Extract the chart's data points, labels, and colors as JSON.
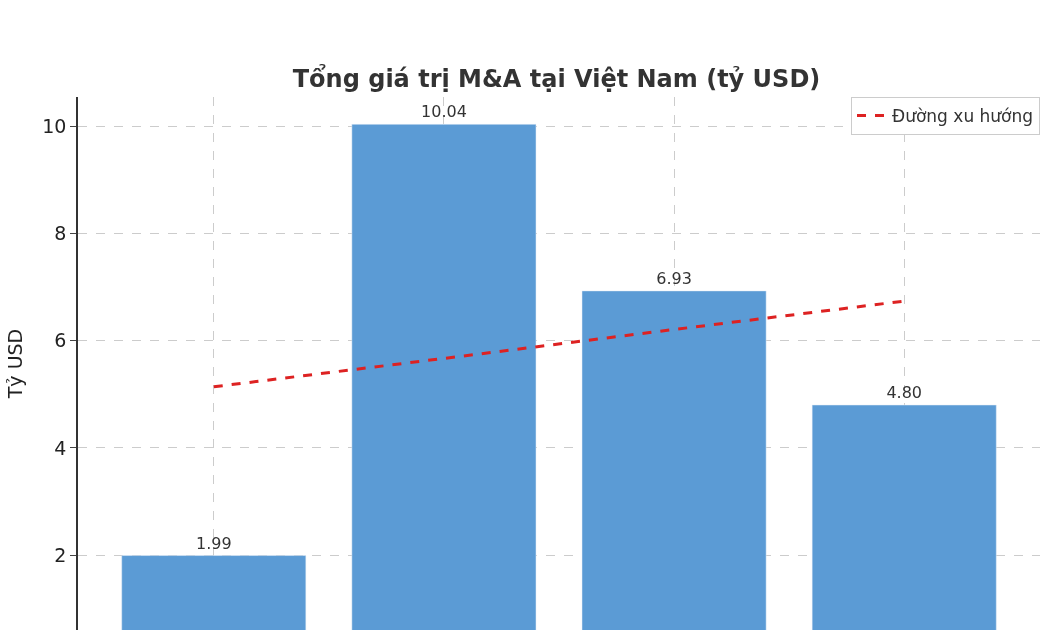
{
  "chart_data": {
    "type": "bar",
    "title": "Tổng giá trị M&A tại Việt Nam (tỷ USD)",
    "ylabel": "Tỷ USD",
    "categories": [
      null,
      null,
      null,
      null
    ],
    "series": [
      {
        "color": "#5b9bd5",
        "values": [
          1.99,
          10.04,
          6.93,
          4.8
        ],
        "value_labels": [
          "1.99",
          "10.04",
          "6.93",
          "4.80"
        ]
      },
      {
        "type": "line",
        "name": "Đường xu hướng",
        "color": "#dd2222",
        "values": [
          5.14,
          5.67,
          6.21,
          6.74
        ],
        "line_style": "dashed",
        "marker": "none"
      }
    ],
    "ylim": [
      0.6,
      10.55
    ],
    "yticks": [
      2,
      4,
      6,
      8,
      10
    ],
    "grid": true,
    "legend": "top right",
    "tick_labels": "y"
  }
}
